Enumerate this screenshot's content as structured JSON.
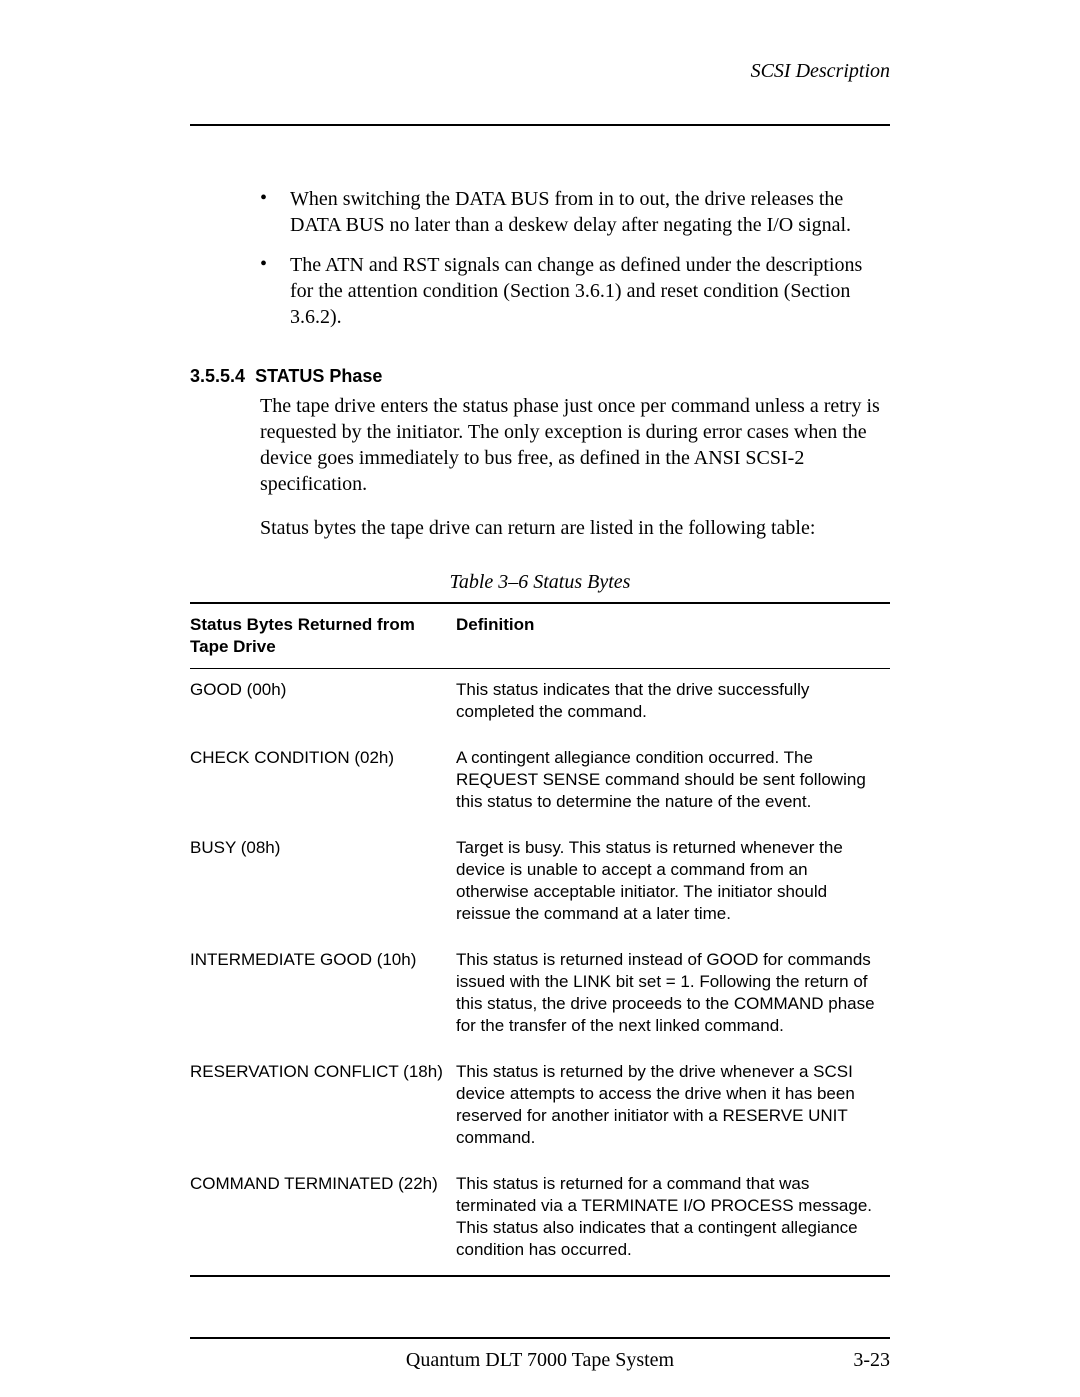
{
  "header": {
    "title": "SCSI Description"
  },
  "bullets": [
    "When switching the DATA BUS from in to out, the drive releases the DATA BUS no later than a deskew delay after negating the I/O signal.",
    "The ATN and RST signals can change as defined under the descriptions for the attention condition (Section 3.6.1) and reset condition (Section 3.6.2)."
  ],
  "section": {
    "number": "3.5.5.4",
    "title": "STATUS Phase",
    "para1": "The tape drive enters the status phase just once per command unless a retry is requested by the initiator. The only exception is during error cases when the device goes immediately to bus free, as defined in the ANSI SCSI-2 specification.",
    "para2": "Status bytes the tape drive can return are listed in the following table:"
  },
  "table": {
    "caption": "Table 3–6 Status Bytes",
    "col1": "Status Bytes Returned from Tape Drive",
    "col2": "Definition",
    "rows": [
      {
        "status": "GOOD (00h)",
        "def": "This status indicates that the drive successfully completed the command."
      },
      {
        "status": "CHECK CONDITION (02h)",
        "def": "A contingent allegiance condition occurred. The REQUEST SENSE command should be sent following this status to determine the nature of the event."
      },
      {
        "status": "BUSY (08h)",
        "def": "Target is busy. This status is returned whenever the device is unable to accept a command from an otherwise acceptable initiator. The initiator should reissue the command at a later time."
      },
      {
        "status": "INTERMEDIATE GOOD (10h)",
        "def": "This status is returned instead of GOOD for commands issued with the LINK bit set = 1. Following the return of this status, the drive proceeds to the COMMAND phase for the transfer of the next linked command."
      },
      {
        "status": "RESERVATION CONFLICT (18h)",
        "def": "This status is returned by the drive whenever a SCSI device attempts to access the drive when it has been reserved for another initiator with a RESERVE UNIT command."
      },
      {
        "status": "COMMAND TERMINATED (22h)",
        "def": "This status is returned for a command that was terminated via a TERMINATE I/O PROCESS message. This status also indicates that a contingent allegiance condition has occurred."
      }
    ]
  },
  "footer": {
    "center": "Quantum DLT 7000 Tape System",
    "right": "3-23"
  }
}
